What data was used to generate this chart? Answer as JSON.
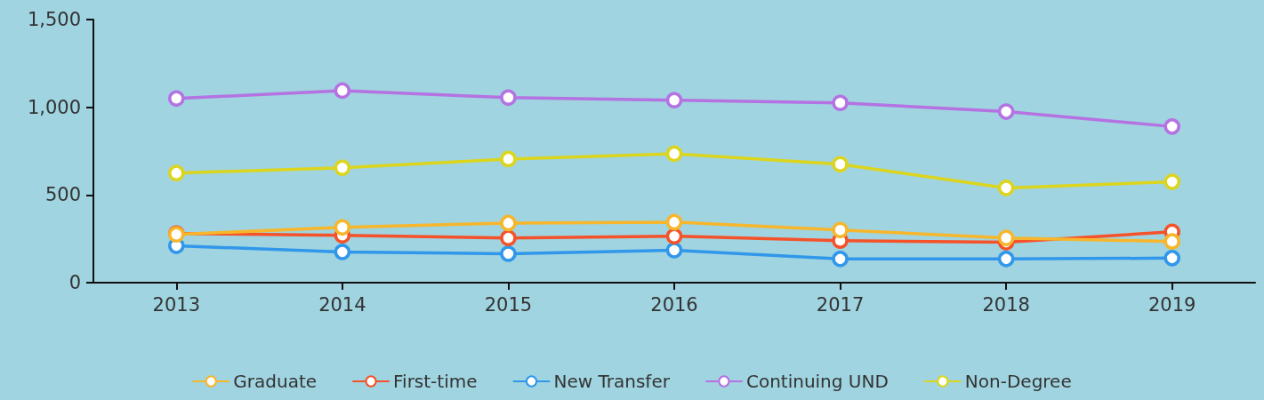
{
  "chart_data": {
    "type": "line",
    "categories": [
      "2013",
      "2014",
      "2015",
      "2016",
      "2017",
      "2018",
      "2019"
    ],
    "ylim": [
      0,
      1500
    ],
    "yticks": [
      0,
      {
        "value": 500,
        "label": "500"
      },
      {
        "value": 1000,
        "label": "1,000"
      },
      {
        "value": 1500,
        "label": "1,500"
      }
    ],
    "grid": false,
    "legend": "bottom",
    "marker": "circle",
    "line_style": "solid",
    "series": [
      {
        "name": "Graduate",
        "color": "#f7b62b",
        "values": [
          275,
          315,
          340,
          345,
          300,
          255,
          235
        ]
      },
      {
        "name": "First-time",
        "color": "#f5522a",
        "values": [
          280,
          270,
          255,
          265,
          240,
          230,
          290
        ]
      },
      {
        "name": "New Transfer",
        "color": "#3197ea",
        "values": [
          210,
          175,
          165,
          185,
          135,
          135,
          140
        ]
      },
      {
        "name": "Continuing UND",
        "color": "#b472e2",
        "values": [
          1050,
          1095,
          1055,
          1040,
          1025,
          975,
          890
        ]
      },
      {
        "name": "Non-Degree",
        "color": "#dcd51e",
        "values": [
          625,
          655,
          705,
          735,
          675,
          540,
          575
        ]
      }
    ]
  }
}
